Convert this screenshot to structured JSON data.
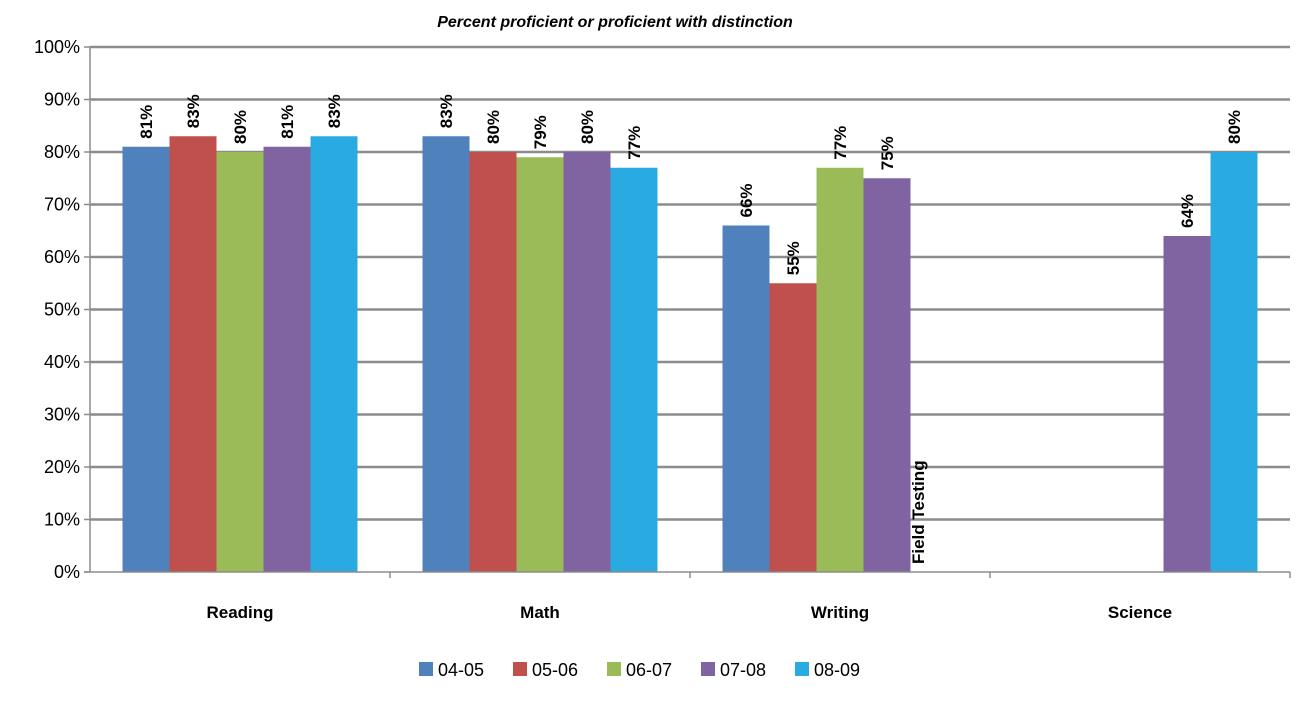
{
  "chart_data": {
    "type": "bar",
    "title": "Percent proficient or proficient with distinction",
    "categories": [
      "Reading",
      "Math",
      "Writing",
      "Science"
    ],
    "series": [
      {
        "name": "04-05",
        "color": "#4F81BD",
        "values": [
          81,
          83,
          66,
          null
        ]
      },
      {
        "name": "05-06",
        "color": "#C0504D",
        "values": [
          83,
          80,
          55,
          null
        ]
      },
      {
        "name": "06-07",
        "color": "#9BBB59",
        "values": [
          80,
          79,
          77,
          null
        ]
      },
      {
        "name": "07-08",
        "color": "#8064A2",
        "values": [
          81,
          80,
          75,
          64
        ]
      },
      {
        "name": "08-09",
        "color": "#29ABE2",
        "values": [
          83,
          77,
          null,
          80
        ]
      }
    ],
    "ylim": [
      0,
      100
    ],
    "yticks": [
      0,
      10,
      20,
      30,
      40,
      50,
      60,
      70,
      80,
      90,
      100
    ],
    "ytick_suffix": "%",
    "value_suffix": "%",
    "grid": true,
    "legend_position": "bottom",
    "annotations": [
      {
        "text": "Field Testing",
        "category": "Writing",
        "series": "08-09"
      }
    ]
  }
}
